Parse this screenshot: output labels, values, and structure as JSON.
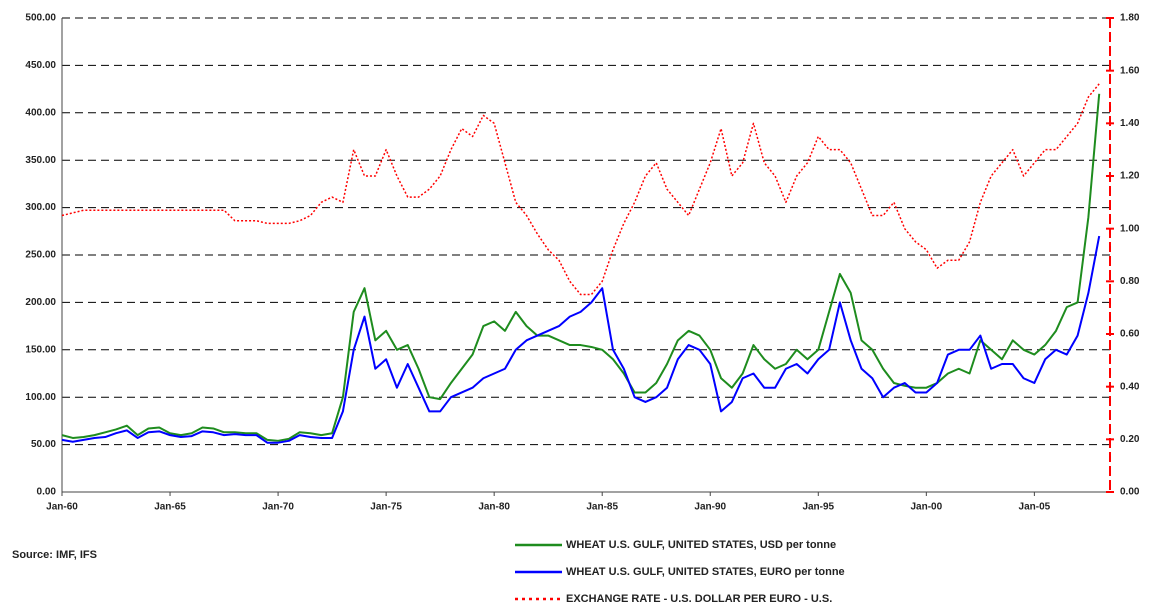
{
  "chart_data": {
    "type": "line",
    "source": "Source: IMF, IFS",
    "x": [
      1960,
      1960.5,
      1961,
      1961.5,
      1962,
      1962.5,
      1963,
      1963.5,
      1964,
      1964.5,
      1965,
      1965.5,
      1966,
      1966.5,
      1967,
      1967.5,
      1968,
      1968.5,
      1969,
      1969.5,
      1970,
      1970.5,
      1971,
      1971.5,
      1972,
      1972.5,
      1973,
      1973.5,
      1974,
      1974.5,
      1975,
      1975.5,
      1976,
      1976.5,
      1977,
      1977.5,
      1978,
      1978.5,
      1979,
      1979.5,
      1980,
      1980.5,
      1981,
      1981.5,
      1982,
      1982.5,
      1983,
      1983.5,
      1984,
      1984.5,
      1985,
      1985.5,
      1986,
      1986.5,
      1987,
      1987.5,
      1988,
      1988.5,
      1989,
      1989.5,
      1990,
      1990.5,
      1991,
      1991.5,
      1992,
      1992.5,
      1993,
      1993.5,
      1994,
      1994.5,
      1995,
      1995.5,
      1996,
      1996.5,
      1997,
      1997.5,
      1998,
      1998.5,
      1999,
      1999.5,
      2000,
      2000.5,
      2001,
      2001.5,
      2002,
      2002.5,
      2003,
      2003.5,
      2004,
      2004.5,
      2005,
      2005.5,
      2006,
      2006.5,
      2007,
      2007.5,
      2008
    ],
    "xlim": [
      1960,
      2008.5
    ],
    "xticks": [
      {
        "value": 1960,
        "label": "Jan-60"
      },
      {
        "value": 1965,
        "label": "Jan-65"
      },
      {
        "value": 1970,
        "label": "Jan-70"
      },
      {
        "value": 1975,
        "label": "Jan-75"
      },
      {
        "value": 1980,
        "label": "Jan-80"
      },
      {
        "value": 1985,
        "label": "Jan-85"
      },
      {
        "value": 1990,
        "label": "Jan-90"
      },
      {
        "value": 1995,
        "label": "Jan-95"
      },
      {
        "value": 2000,
        "label": "Jan-00"
      },
      {
        "value": 2005,
        "label": "Jan-05"
      }
    ],
    "ylim": [
      0,
      500
    ],
    "yticks": [
      {
        "value": 0,
        "label": "0.00"
      },
      {
        "value": 50,
        "label": "50.00"
      },
      {
        "value": 100,
        "label": "100.00"
      },
      {
        "value": 150,
        "label": "150.00"
      },
      {
        "value": 200,
        "label": "200.00"
      },
      {
        "value": 250,
        "label": "250.00"
      },
      {
        "value": 300,
        "label": "300.00"
      },
      {
        "value": 350,
        "label": "350.00"
      },
      {
        "value": 400,
        "label": "400.00"
      },
      {
        "value": 450,
        "label": "450.00"
      },
      {
        "value": 500,
        "label": "500.00"
      }
    ],
    "y2lim": [
      0,
      1.8
    ],
    "y2ticks": [
      {
        "value": 0,
        "label": "0.00"
      },
      {
        "value": 0.2,
        "label": "0.20"
      },
      {
        "value": 0.4,
        "label": "0.40"
      },
      {
        "value": 0.6,
        "label": "0.60"
      },
      {
        "value": 0.8,
        "label": "0.80"
      },
      {
        "value": 1,
        "label": "1.00"
      },
      {
        "value": 1.2,
        "label": "1.20"
      },
      {
        "value": 1.4,
        "label": "1.40"
      },
      {
        "value": 1.6,
        "label": "1.60"
      },
      {
        "value": 1.8,
        "label": "1.80"
      }
    ],
    "grid": true,
    "series": [
      {
        "name": "WHEAT U.S. GULF, UNITED STATES, USD per tonne",
        "color": "#1e8c1e",
        "values": [
          60,
          57,
          58,
          60,
          63,
          66,
          70,
          60,
          67,
          68,
          62,
          60,
          62,
          68,
          67,
          63,
          63,
          62,
          62,
          55,
          54,
          56,
          63,
          62,
          60,
          62,
          100,
          190,
          215,
          160,
          170,
          150,
          155,
          130,
          100,
          98,
          115,
          130,
          145,
          175,
          180,
          170,
          190,
          175,
          165,
          165,
          160,
          155,
          155,
          153,
          150,
          140,
          125,
          105,
          105,
          115,
          135,
          160,
          170,
          165,
          150,
          120,
          110,
          125,
          155,
          140,
          130,
          135,
          150,
          140,
          150,
          190,
          230,
          210,
          160,
          150,
          130,
          115,
          112,
          110,
          110,
          115,
          125,
          130,
          125,
          160,
          150,
          140,
          160,
          150,
          145,
          155,
          170,
          195,
          200,
          290,
          420
        ]
      },
      {
        "name": "WHEAT U.S. GULF, UNITED STATES, EURO per tonne",
        "color": "#0000ff",
        "values": [
          55,
          53,
          55,
          57,
          58,
          62,
          65,
          57,
          63,
          64,
          60,
          58,
          59,
          64,
          63,
          60,
          61,
          60,
          60,
          52,
          52,
          54,
          60,
          58,
          57,
          57,
          85,
          150,
          185,
          130,
          140,
          110,
          135,
          110,
          85,
          85,
          100,
          105,
          110,
          120,
          125,
          130,
          150,
          160,
          165,
          170,
          175,
          185,
          190,
          200,
          215,
          150,
          130,
          100,
          95,
          100,
          110,
          140,
          155,
          150,
          135,
          85,
          95,
          120,
          125,
          110,
          110,
          130,
          135,
          125,
          140,
          150,
          200,
          160,
          130,
          120,
          100,
          110,
          115,
          105,
          105,
          115,
          145,
          150,
          150,
          165,
          130,
          135,
          135,
          120,
          115,
          140,
          150,
          145,
          165,
          210,
          270
        ]
      },
      {
        "name": "EXCHANGE RATE - U.S. DOLLAR PER EURO - U.S.",
        "color": "#ff0000",
        "axis": "y2",
        "dashed": true,
        "values": [
          1.05,
          1.06,
          1.07,
          1.07,
          1.07,
          1.07,
          1.07,
          1.07,
          1.07,
          1.07,
          1.07,
          1.07,
          1.07,
          1.07,
          1.07,
          1.07,
          1.03,
          1.03,
          1.03,
          1.02,
          1.02,
          1.02,
          1.03,
          1.05,
          1.1,
          1.12,
          1.1,
          1.3,
          1.2,
          1.2,
          1.3,
          1.2,
          1.12,
          1.12,
          1.15,
          1.2,
          1.3,
          1.38,
          1.35,
          1.43,
          1.4,
          1.25,
          1.1,
          1.05,
          0.98,
          0.92,
          0.88,
          0.8,
          0.75,
          0.75,
          0.8,
          0.92,
          1.02,
          1.1,
          1.2,
          1.25,
          1.15,
          1.1,
          1.05,
          1.15,
          1.25,
          1.38,
          1.2,
          1.25,
          1.4,
          1.25,
          1.2,
          1.1,
          1.2,
          1.25,
          1.35,
          1.3,
          1.3,
          1.25,
          1.15,
          1.05,
          1.05,
          1.1,
          1,
          0.95,
          0.92,
          0.85,
          0.88,
          0.88,
          0.95,
          1.1,
          1.2,
          1.25,
          1.3,
          1.2,
          1.25,
          1.3,
          1.3,
          1.35,
          1.4,
          1.5,
          1.55
        ]
      }
    ]
  }
}
